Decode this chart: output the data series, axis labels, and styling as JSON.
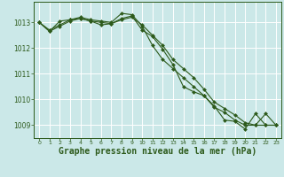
{
  "background_color": "#cbe8e8",
  "grid_color": "#ffffff",
  "line_color": "#2d5a1b",
  "marker_color": "#2d5a1b",
  "xlabel": "Graphe pression niveau de la mer (hPa)",
  "xlabel_fontsize": 7,
  "ylim": [
    1008.5,
    1013.8
  ],
  "xlim": [
    -0.5,
    23.5
  ],
  "yticks": [
    1009,
    1010,
    1011,
    1012,
    1013
  ],
  "xticks": [
    0,
    1,
    2,
    3,
    4,
    5,
    6,
    7,
    8,
    9,
    10,
    11,
    12,
    13,
    14,
    15,
    16,
    17,
    18,
    19,
    20,
    21,
    22,
    23
  ],
  "series1_x": [
    0,
    1,
    2,
    3,
    4,
    5,
    6,
    7,
    8,
    9,
    10,
    11,
    12,
    13,
    14,
    15,
    16,
    17,
    18,
    19,
    20,
    21,
    22,
    23
  ],
  "series1_y": [
    1013.0,
    1012.7,
    1012.9,
    1013.1,
    1013.2,
    1013.1,
    1013.05,
    1013.0,
    1013.35,
    1013.3,
    1012.85,
    1012.1,
    1011.55,
    1011.2,
    1010.85,
    1010.5,
    1010.15,
    1009.75,
    1009.2,
    1009.15,
    1008.85,
    1009.45,
    1009.0,
    1009.0
  ],
  "series2_x": [
    0,
    1,
    2,
    3,
    4,
    5,
    6,
    7,
    8,
    9,
    10,
    11,
    12,
    13,
    14,
    15,
    16,
    17,
    18,
    19,
    20,
    21,
    22,
    23
  ],
  "series2_y": [
    1013.0,
    1012.65,
    1013.05,
    1013.1,
    1013.15,
    1013.05,
    1013.0,
    1012.95,
    1013.1,
    1013.2,
    1012.9,
    1012.5,
    1012.1,
    1011.55,
    1011.2,
    1010.85,
    1010.4,
    1009.9,
    1009.65,
    1009.4,
    1009.1,
    1009.0,
    1009.45,
    1009.0
  ],
  "series3_x": [
    0,
    1,
    2,
    3,
    4,
    5,
    6,
    7,
    8,
    9,
    10,
    11,
    12,
    13,
    14,
    15,
    16,
    17,
    18,
    19,
    20,
    21,
    22,
    23
  ],
  "series3_y": [
    1013.0,
    1012.65,
    1012.85,
    1013.05,
    1013.15,
    1013.05,
    1012.9,
    1012.95,
    1013.15,
    1013.25,
    1012.7,
    1012.45,
    1011.95,
    1011.35,
    1010.5,
    1010.3,
    1010.15,
    1009.7,
    1009.5,
    1009.2,
    1009.0,
    1009.0,
    1009.0,
    1009.0
  ]
}
